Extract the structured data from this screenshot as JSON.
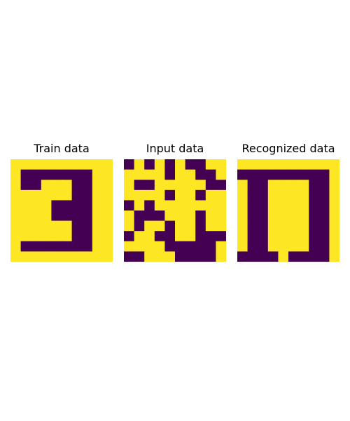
{
  "colors": {
    "on": "#440154",
    "off": "#fde725"
  },
  "chart_data": [
    {
      "type": "heatmap",
      "title": "Train data",
      "rows": 10,
      "cols": 10,
      "values": [
        [
          0,
          0,
          0,
          0,
          0,
          0,
          0,
          0,
          0,
          0
        ],
        [
          0,
          1,
          1,
          1,
          1,
          1,
          1,
          1,
          0,
          0
        ],
        [
          0,
          1,
          1,
          0,
          0,
          0,
          1,
          1,
          0,
          0
        ],
        [
          0,
          0,
          0,
          0,
          0,
          0,
          1,
          1,
          0,
          0
        ],
        [
          0,
          0,
          0,
          0,
          1,
          1,
          1,
          1,
          0,
          0
        ],
        [
          0,
          0,
          0,
          0,
          1,
          1,
          1,
          1,
          0,
          0
        ],
        [
          0,
          0,
          0,
          0,
          0,
          0,
          1,
          1,
          0,
          0
        ],
        [
          0,
          0,
          0,
          0,
          0,
          0,
          1,
          1,
          0,
          0
        ],
        [
          0,
          1,
          1,
          1,
          1,
          1,
          1,
          1,
          0,
          0
        ],
        [
          0,
          0,
          0,
          0,
          0,
          0,
          0,
          0,
          0,
          0
        ]
      ]
    },
    {
      "type": "heatmap",
      "title": "Input data",
      "rows": 10,
      "cols": 10,
      "values": [
        [
          1,
          0,
          1,
          0,
          1,
          0,
          1,
          1,
          0,
          0
        ],
        [
          0,
          0,
          0,
          0,
          1,
          0,
          0,
          1,
          1,
          0
        ],
        [
          0,
          1,
          1,
          0,
          0,
          0,
          0,
          0,
          1,
          1
        ],
        [
          0,
          0,
          0,
          0,
          1,
          0,
          0,
          1,
          0,
          0
        ],
        [
          1,
          0,
          1,
          0,
          0,
          0,
          0,
          0,
          0,
          0
        ],
        [
          0,
          1,
          1,
          1,
          0,
          0,
          0,
          1,
          0,
          0
        ],
        [
          0,
          1,
          0,
          0,
          1,
          0,
          0,
          1,
          0,
          0
        ],
        [
          1,
          0,
          0,
          1,
          1,
          0,
          0,
          1,
          1,
          1
        ],
        [
          0,
          0,
          0,
          0,
          1,
          1,
          1,
          1,
          1,
          0
        ],
        [
          1,
          1,
          0,
          0,
          0,
          1,
          1,
          1,
          1,
          0
        ]
      ]
    },
    {
      "type": "heatmap",
      "title": "Recognized data",
      "rows": 10,
      "cols": 10,
      "values": [
        [
          0,
          0,
          0,
          0,
          0,
          0,
          0,
          0,
          0,
          0
        ],
        [
          1,
          1,
          1,
          1,
          1,
          1,
          1,
          1,
          1,
          0
        ],
        [
          0,
          1,
          1,
          0,
          0,
          0,
          0,
          1,
          1,
          0
        ],
        [
          0,
          1,
          1,
          0,
          0,
          0,
          0,
          1,
          1,
          0
        ],
        [
          0,
          1,
          1,
          0,
          0,
          0,
          0,
          1,
          1,
          0
        ],
        [
          0,
          1,
          1,
          0,
          0,
          0,
          0,
          1,
          1,
          0
        ],
        [
          0,
          1,
          1,
          0,
          0,
          0,
          0,
          1,
          1,
          0
        ],
        [
          0,
          1,
          1,
          0,
          0,
          0,
          0,
          1,
          1,
          0
        ],
        [
          0,
          1,
          1,
          0,
          0,
          0,
          0,
          1,
          1,
          0
        ],
        [
          1,
          1,
          1,
          1,
          0,
          1,
          1,
          1,
          1,
          0
        ]
      ]
    }
  ]
}
